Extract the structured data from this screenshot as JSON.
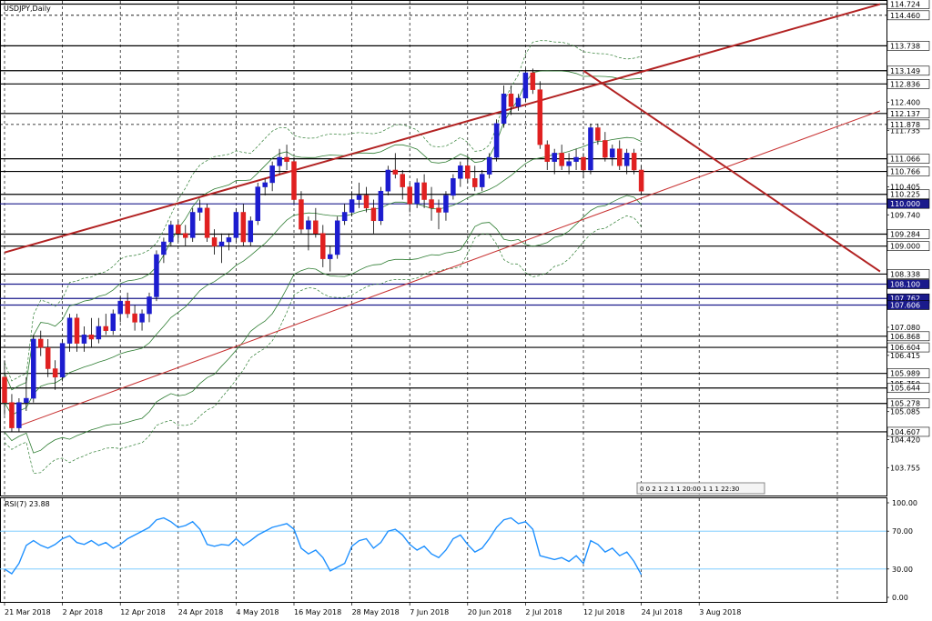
{
  "chart_data": {
    "type": "candlestick",
    "title": "USDJPY,Daily",
    "symbol": "USDJPY",
    "timeframe": "Daily",
    "price_ylim": [
      103.1,
      114.8
    ],
    "price_ticks": [
      "114.724",
      "114.460",
      "113.738",
      "113.149",
      "112.836",
      "112.400",
      "112.137",
      "111.878",
      "111.735",
      "111.066",
      "110.766",
      "110.405",
      "110.225",
      "110.000",
      "109.740",
      "109.284",
      "109.000",
      "108.338",
      "108.100",
      "107.762",
      "107.606",
      "107.080",
      "106.868",
      "106.604",
      "106.415",
      "105.989",
      "105.750",
      "105.644",
      "105.278",
      "105.085",
      "104.607",
      "104.420",
      "103.755"
    ],
    "highlighted_levels": [
      {
        "value": 114.724,
        "label": "114.724",
        "color": "#000000"
      },
      {
        "value": 114.46,
        "label": "114.460",
        "color": "#000000"
      },
      {
        "value": 113.738,
        "label": "113.738",
        "color": "#000000"
      },
      {
        "value": 113.149,
        "label": "113.149",
        "color": "#000000"
      },
      {
        "value": 112.836,
        "label": "112.836",
        "color": "#000000"
      },
      {
        "value": 112.137,
        "label": "112.137",
        "color": "#000000"
      },
      {
        "value": 111.878,
        "label": "111.878",
        "color": "#000000"
      },
      {
        "value": 111.066,
        "label": "111.066",
        "color": "#000000"
      },
      {
        "value": 110.766,
        "label": "110.766",
        "color": "#000000"
      },
      {
        "value": 110.225,
        "label": "110.225",
        "color": "#000000"
      },
      {
        "value": 110.0,
        "label": "110.000",
        "color": "#1a1a8c"
      },
      {
        "value": 109.284,
        "label": "109.284",
        "color": "#000000"
      },
      {
        "value": 109.0,
        "label": "109.000",
        "color": "#000000"
      },
      {
        "value": 108.338,
        "label": "108.338",
        "color": "#000000"
      },
      {
        "value": 108.1,
        "label": "108.100",
        "color": "#1a1a8c"
      },
      {
        "value": 107.762,
        "label": "107.762",
        "color": "#1a1a8c"
      },
      {
        "value": 107.606,
        "label": "107.606",
        "color": "#1a1a8c"
      },
      {
        "value": 106.868,
        "label": "106.868",
        "color": "#000000"
      },
      {
        "value": 106.604,
        "label": "106.604",
        "color": "#000000"
      },
      {
        "value": 105.989,
        "label": "105.989",
        "color": "#000000"
      },
      {
        "value": 105.644,
        "label": "105.644",
        "color": "#000000"
      },
      {
        "value": 105.278,
        "label": "105.278",
        "color": "#000000"
      },
      {
        "value": 104.607,
        "label": "104.607",
        "color": "#000000"
      }
    ],
    "dashed_levels": [
      114.46,
      111.878
    ],
    "x_labels": [
      "21 Mar 2018",
      "2 Apr 2018",
      "12 Apr 2018",
      "24 Apr 2018",
      "4 May 2018",
      "16 May 2018",
      "28 May 2018",
      "7 Jun 2018",
      "20 Jun 2018",
      "2 Jul 2018",
      "12 Jul 2018",
      "24 Jul 2018",
      "3 Aug 2018"
    ],
    "x_label_index": [
      0,
      8,
      16,
      24,
      32,
      40,
      48,
      56,
      64,
      72,
      80,
      88,
      96
    ],
    "candles": [
      [
        105.9,
        106.3,
        105.0,
        105.3
      ],
      [
        105.3,
        105.5,
        104.6,
        104.7
      ],
      [
        104.7,
        105.4,
        104.6,
        105.3
      ],
      [
        105.3,
        105.9,
        105.1,
        105.4
      ],
      [
        105.4,
        106.9,
        105.3,
        106.8
      ],
      [
        106.8,
        107.0,
        106.4,
        106.6
      ],
      [
        106.6,
        106.8,
        105.9,
        106.1
      ],
      [
        106.1,
        106.3,
        105.6,
        105.9
      ],
      [
        105.9,
        106.8,
        105.8,
        106.7
      ],
      [
        106.7,
        107.4,
        106.5,
        107.3
      ],
      [
        107.3,
        107.4,
        106.5,
        106.7
      ],
      [
        106.7,
        107.1,
        106.5,
        106.9
      ],
      [
        106.9,
        107.3,
        106.6,
        106.8
      ],
      [
        106.8,
        107.3,
        106.7,
        107.1
      ],
      [
        107.1,
        107.4,
        106.9,
        107.0
      ],
      [
        107.0,
        107.5,
        106.9,
        107.4
      ],
      [
        107.4,
        107.8,
        107.2,
        107.7
      ],
      [
        107.7,
        107.9,
        107.3,
        107.4
      ],
      [
        107.4,
        107.6,
        107.0,
        107.2
      ],
      [
        107.2,
        107.5,
        107.0,
        107.4
      ],
      [
        107.4,
        107.9,
        107.2,
        107.8
      ],
      [
        107.8,
        108.9,
        107.7,
        108.8
      ],
      [
        108.8,
        109.2,
        108.6,
        109.1
      ],
      [
        109.1,
        109.6,
        109.0,
        109.5
      ],
      [
        109.5,
        109.6,
        109.1,
        109.3
      ],
      [
        109.3,
        109.5,
        109.0,
        109.2
      ],
      [
        109.2,
        109.9,
        109.1,
        109.8
      ],
      [
        109.8,
        110.1,
        109.6,
        109.9
      ],
      [
        109.9,
        110.0,
        109.1,
        109.2
      ],
      [
        109.2,
        109.4,
        108.8,
        109.0
      ],
      [
        109.0,
        109.3,
        108.6,
        109.1
      ],
      [
        109.1,
        109.3,
        108.9,
        109.2
      ],
      [
        109.2,
        109.9,
        109.1,
        109.8
      ],
      [
        109.8,
        110.0,
        109.0,
        109.1
      ],
      [
        109.1,
        109.7,
        109.0,
        109.6
      ],
      [
        109.6,
        110.5,
        109.5,
        110.4
      ],
      [
        110.4,
        110.6,
        110.2,
        110.5
      ],
      [
        110.5,
        111.0,
        110.3,
        110.9
      ],
      [
        110.9,
        111.3,
        110.7,
        111.1
      ],
      [
        111.1,
        111.4,
        110.8,
        111.0
      ],
      [
        111.0,
        111.1,
        110.0,
        110.1
      ],
      [
        110.1,
        110.3,
        109.3,
        109.4
      ],
      [
        109.4,
        109.7,
        108.9,
        109.6
      ],
      [
        109.6,
        109.9,
        109.2,
        109.3
      ],
      [
        109.3,
        109.5,
        108.5,
        108.7
      ],
      [
        108.7,
        109.0,
        108.4,
        108.8
      ],
      [
        108.8,
        109.7,
        108.7,
        109.6
      ],
      [
        109.6,
        110.0,
        109.5,
        109.8
      ],
      [
        109.8,
        110.3,
        109.7,
        110.1
      ],
      [
        110.1,
        110.5,
        109.9,
        110.2
      ],
      [
        110.2,
        110.4,
        109.8,
        109.9
      ],
      [
        109.9,
        110.1,
        109.3,
        109.6
      ],
      [
        109.6,
        110.4,
        109.5,
        110.3
      ],
      [
        110.3,
        110.9,
        110.2,
        110.8
      ],
      [
        110.8,
        111.2,
        110.6,
        110.7
      ],
      [
        110.7,
        110.8,
        110.1,
        110.4
      ],
      [
        110.4,
        110.5,
        109.8,
        110.0
      ],
      [
        110.0,
        110.6,
        109.9,
        110.5
      ],
      [
        110.5,
        110.7,
        109.9,
        110.1
      ],
      [
        110.1,
        110.4,
        109.6,
        109.9
      ],
      [
        109.9,
        110.1,
        109.4,
        109.8
      ],
      [
        109.8,
        110.3,
        109.6,
        110.2
      ],
      [
        110.2,
        110.7,
        110.1,
        110.6
      ],
      [
        110.6,
        111.0,
        110.4,
        110.9
      ],
      [
        110.9,
        111.1,
        110.5,
        110.6
      ],
      [
        110.6,
        110.9,
        110.3,
        110.4
      ],
      [
        110.4,
        110.8,
        110.3,
        110.7
      ],
      [
        110.7,
        111.2,
        110.6,
        111.1
      ],
      [
        111.1,
        112.0,
        111.0,
        111.9
      ],
      [
        111.9,
        112.8,
        111.8,
        112.6
      ],
      [
        112.6,
        112.8,
        112.1,
        112.3
      ],
      [
        112.3,
        112.6,
        112.2,
        112.5
      ],
      [
        112.5,
        113.2,
        112.4,
        113.1
      ],
      [
        113.1,
        113.2,
        112.6,
        112.7
      ],
      [
        112.7,
        112.9,
        111.3,
        111.4
      ],
      [
        111.4,
        111.5,
        110.8,
        111.0
      ],
      [
        111.0,
        111.3,
        110.7,
        111.2
      ],
      [
        111.2,
        111.4,
        110.8,
        110.9
      ],
      [
        110.9,
        111.2,
        110.7,
        111.0
      ],
      [
        111.0,
        111.3,
        110.8,
        111.1
      ],
      [
        111.1,
        111.2,
        110.6,
        110.8
      ],
      [
        110.8,
        111.9,
        110.7,
        111.8
      ],
      [
        111.8,
        111.9,
        111.4,
        111.5
      ],
      [
        111.5,
        111.7,
        111.0,
        111.1
      ],
      [
        111.1,
        111.4,
        110.9,
        111.3
      ],
      [
        111.3,
        111.5,
        110.8,
        110.9
      ],
      [
        110.9,
        111.3,
        110.7,
        111.2
      ],
      [
        111.2,
        111.3,
        110.7,
        110.8
      ],
      [
        110.8,
        110.9,
        110.2,
        110.3
      ]
    ],
    "trendlines": [
      {
        "color": "#b22222",
        "width": 2,
        "points": [
          [
            0,
            108.85
          ],
          [
            121,
            114.724
          ]
        ]
      },
      {
        "color": "#b22222",
        "width": 2,
        "points": [
          [
            80,
            113.15
          ],
          [
            121,
            108.4
          ]
        ]
      },
      {
        "color": "#c83232",
        "width": 1,
        "points": [
          [
            2,
            104.75
          ],
          [
            121,
            112.2
          ]
        ]
      }
    ],
    "rsi": {
      "label": "RSI(7) 23.88",
      "period": 7,
      "value": 23.88,
      "ylim": [
        0,
        100
      ],
      "levels": [
        70,
        30
      ],
      "tick_labels": [
        "100.00",
        "70.00",
        "30.00",
        "0.00"
      ],
      "tick_values": [
        100,
        70,
        30,
        0
      ],
      "color": "#1e90ff",
      "values": [
        30,
        25,
        36,
        55,
        60,
        55,
        52,
        56,
        62,
        65,
        58,
        56,
        60,
        55,
        58,
        52,
        56,
        62,
        66,
        70,
        74,
        82,
        84,
        80,
        74,
        76,
        80,
        72,
        56,
        54,
        56,
        55,
        62,
        55,
        60,
        66,
        70,
        74,
        76,
        78,
        72,
        52,
        46,
        50,
        42,
        28,
        32,
        36,
        54,
        60,
        62,
        52,
        58,
        70,
        72,
        66,
        56,
        50,
        54,
        46,
        42,
        50,
        62,
        66,
        56,
        48,
        52,
        62,
        74,
        82,
        84,
        78,
        80,
        72,
        44,
        42,
        40,
        42,
        38,
        44,
        36,
        60,
        56,
        48,
        52,
        44,
        48,
        38,
        24
      ]
    },
    "toolbar_text": "0 0 2 1 2 1 1 20:00 1 1 1 22:30",
    "grid": true,
    "bollinger_bands": true
  }
}
